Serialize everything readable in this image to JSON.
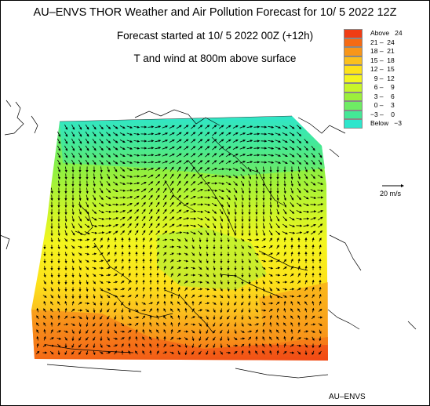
{
  "header": {
    "title": "AU–ENVS THOR Weather and Air Pollution Forecast for 10/ 5 2022  12Z",
    "forecast_start": "Forecast started at 10/ 5 2022  00Z (+12h)",
    "field": "T and wind at 800m above surface"
  },
  "legend": {
    "items": [
      {
        "label": "Above   24",
        "color": "#f03c14"
      },
      {
        "label": "21 –  24",
        "color": "#f56a14"
      },
      {
        "label": "18 –  21",
        "color": "#f8961a"
      },
      {
        "label": "15 –  18",
        "color": "#fbc01e"
      },
      {
        "label": "12 –  15",
        "color": "#fde21a"
      },
      {
        "label": "  9 –  12",
        "color": "#f4f51e"
      },
      {
        "label": "  6 –    9",
        "color": "#c8f52a"
      },
      {
        "label": "  3 –    6",
        "color": "#9cef3c"
      },
      {
        "label": "  0 –    3",
        "color": "#6eec64"
      },
      {
        "label": "−3 –    0",
        "color": "#44e896"
      },
      {
        "label": "Below   −3",
        "color": "#2ee6cc"
      }
    ]
  },
  "wind_scale": {
    "label": "20 m/s"
  },
  "footer": {
    "credit": "AU–ENVS"
  }
}
